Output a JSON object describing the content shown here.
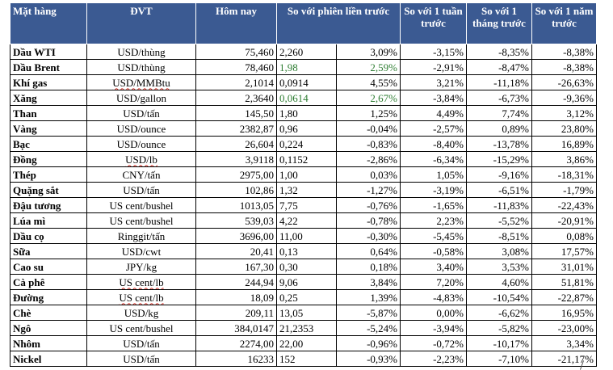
{
  "headers": {
    "commodity": "Mặt hàng",
    "unit": "ĐVT",
    "today": "Hôm nay",
    "vs_prev_session": "So với phiên liền trước",
    "vs_1_week": "So với 1 tuần trước",
    "vs_1_month": "So với 1 tháng trước",
    "vs_1_year": "So với 1 năm trước"
  },
  "rows": [
    {
      "name": "Dầu WTI",
      "unit": "USD/thùng",
      "today": "75,460",
      "chg": "2,260",
      "chg_pct": "3,09%",
      "week": "-3,15%",
      "month": "-8,35%",
      "year": "-8,38%"
    },
    {
      "name": "Dầu Brent",
      "unit": "USD/thùng",
      "today": "78,460",
      "chg": "1,98",
      "chg_pct": "2,59%",
      "week": "-2,91%",
      "month": "-8,47%",
      "year": "-8,38%"
    },
    {
      "name": "Khí gas",
      "unit": "USD/MMBtu",
      "today": "2,1014",
      "chg": "0,0914",
      "chg_pct": "4,55%",
      "week": "3,21%",
      "month": "-11,18%",
      "year": "-26,63%"
    },
    {
      "name": "Xăng",
      "unit": "USD/gallon",
      "today": "2,3640",
      "chg": "0,0614",
      "chg_pct": "2,67%",
      "week": "-3,84%",
      "month": "-6,73%",
      "year": "-9,36%"
    },
    {
      "name": "Than",
      "unit": "USD/tấn",
      "today": "145,50",
      "chg": "1,80",
      "chg_pct": "1,25%",
      "week": "4,49%",
      "month": "7,74%",
      "year": "3,12%"
    },
    {
      "name": "Vàng",
      "unit": "USD/ounce",
      "today": "2382,87",
      "chg": "0,96",
      "chg_pct": "-0,04%",
      "week": "-2,57%",
      "month": "0,89%",
      "year": "23,80%"
    },
    {
      "name": "Bạc",
      "unit": "USD/ounce",
      "today": "26,604",
      "chg": "0,224",
      "chg_pct": "-0,83%",
      "week": "-8,40%",
      "month": "-13,78%",
      "year": "16,89%"
    },
    {
      "name": "Đồng",
      "unit": "USD/lb",
      "today": "3,9118",
      "chg": "0,1152",
      "chg_pct": "-2,86%",
      "week": "-6,34%",
      "month": "-15,29%",
      "year": "3,86%"
    },
    {
      "name": "Thép",
      "unit": "CNY/tấn",
      "today": "2975,00",
      "chg": "1,00",
      "chg_pct": "0,03%",
      "week": "1,05%",
      "month": "-9,16%",
      "year": "-18,31%"
    },
    {
      "name": "Quặng sắt",
      "unit": "USD/tấn",
      "today": "102,86",
      "chg": "1,32",
      "chg_pct": "-1,27%",
      "week": "-3,19%",
      "month": "-6,51%",
      "year": "-1,79%"
    },
    {
      "name": "Đậu tương",
      "unit": "US cent/bushel",
      "today": "1013,05",
      "chg": "7,75",
      "chg_pct": "-0,76%",
      "week": "-1,65%",
      "month": "-11,83%",
      "year": "-22,43%"
    },
    {
      "name": "Lúa mì",
      "unit": "US cent/bushel",
      "today": "539,03",
      "chg": "4,22",
      "chg_pct": "-0,78%",
      "week": "2,23%",
      "month": "-5,52%",
      "year": "-20,91%"
    },
    {
      "name": "Dầu cọ",
      "unit": "Ringgit/tấn",
      "today": "3696,00",
      "chg": "11,00",
      "chg_pct": "-0,30%",
      "week": "-5,45%",
      "month": "-8,51%",
      "year": "0,08%"
    },
    {
      "name": "Sữa",
      "unit": "USD/cwt",
      "today": "20,41",
      "chg": "0,13",
      "chg_pct": "0,64%",
      "week": "-0,58%",
      "month": "3,08%",
      "year": "17,57%"
    },
    {
      "name": "Cao su",
      "unit": "JPY/kg",
      "today": "167,30",
      "chg": "0,30",
      "chg_pct": "0,18%",
      "week": "3,40%",
      "month": "3,53%",
      "year": "31,01%"
    },
    {
      "name": "Cà phê",
      "unit": "US cent/lb",
      "today": "244,94",
      "chg": "9,06",
      "chg_pct": "3,84%",
      "week": "7,20%",
      "month": "4,60%",
      "year": "51,81%"
    },
    {
      "name": "Đường",
      "unit": "US cent/lb",
      "today": "18,09",
      "chg": "0,25",
      "chg_pct": "1,39%",
      "week": "-4,83%",
      "month": "-10,54%",
      "year": "-22,87%"
    },
    {
      "name": "Chè",
      "unit": "USD/kg",
      "today": "209,11",
      "chg": "13,05",
      "chg_pct": "-5,87%",
      "week": "0,00%",
      "month": "-6,62%",
      "year": "16,95%"
    },
    {
      "name": "Ngô",
      "unit": "US cent/bushel",
      "today": "384,0147",
      "chg": "21,2353",
      "chg_pct": "-5,24%",
      "week": "-3,94%",
      "month": "-5,82%",
      "year": "-23,00%"
    },
    {
      "name": "Nhôm",
      "unit": "USD/tấn",
      "today": "2274,00",
      "chg": "22,00",
      "chg_pct": "-0,96%",
      "week": "-0,72%",
      "month": "-10,17%",
      "year": "3,34%"
    },
    {
      "name": "Nickel",
      "unit": "USD/tấn",
      "today": "16233",
      "chg": "152",
      "chg_pct": "-0,93%",
      "week": "-2,23%",
      "month": "-7,10%",
      "year": "-21,17%"
    }
  ],
  "colors": {
    "header_bg": "#3b5a92",
    "header_text": "#ffffff",
    "positive_highlight": "#2e7d32"
  }
}
